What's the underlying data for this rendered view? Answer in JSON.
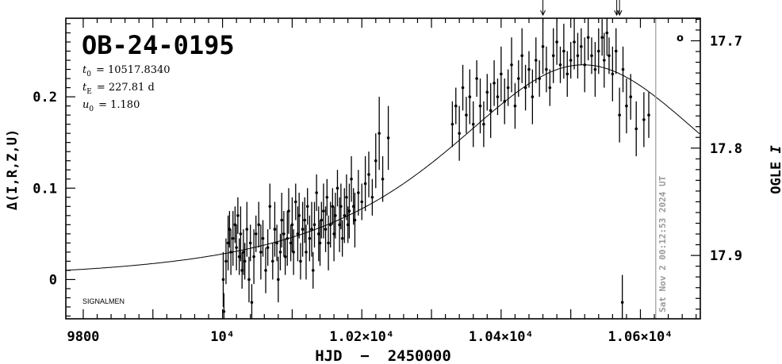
{
  "chart_data": {
    "type": "scatter",
    "title": "OB-24-0195",
    "params": [
      {
        "symbol": "t",
        "sub": "0",
        "value": "= 10517.8340"
      },
      {
        "symbol": "t",
        "sub": "E",
        "value": "= 227.81 d"
      },
      {
        "symbol": "u",
        "sub": "0",
        "value": "= 1.180"
      }
    ],
    "xlabel": "HJD  −  2450000",
    "ylabel": "Δ(I,R,Z,U)",
    "y2label": "OGLE I",
    "xlim": [
      9775,
      10686
    ],
    "ylim": [
      -0.043,
      0.286
    ],
    "y2lim": [
      17.959,
      17.679
    ],
    "x_ticks": [
      {
        "value": 9800,
        "label": "9800"
      },
      {
        "value": 10000,
        "label": "10⁴"
      },
      {
        "value": 10200,
        "label": "1.02×10⁴"
      },
      {
        "value": 10400,
        "label": "1.04×10⁴"
      },
      {
        "value": 10600,
        "label": "1.06×10⁴"
      }
    ],
    "y_ticks": [
      {
        "value": 0,
        "label": "0"
      },
      {
        "value": 0.1,
        "label": "0.1"
      },
      {
        "value": 0.2,
        "label": "0.2"
      }
    ],
    "y2_ticks": [
      {
        "value": 17.7,
        "label": "17.7"
      },
      {
        "value": 17.8,
        "label": "17.8"
      },
      {
        "value": 17.9,
        "label": "17.9"
      }
    ],
    "date_marker": {
      "x": 10622,
      "label": "Sat Nov  2 00:12:53 2024 UT",
      "color": "#9a9a9a"
    },
    "arrows_x": [
      10460,
      10566,
      10570
    ],
    "footnote": "SIGNALMEN",
    "corner_mark": "o",
    "model": {
      "t0": 10517.834,
      "tE": 227.81,
      "u0": 1.18
    },
    "series": [
      {
        "marker": "point-with-errorbar",
        "points": [
          [
            10001,
            0.0,
            0.03
          ],
          [
            10002,
            -0.035,
            0.02
          ],
          [
            10005,
            0.02,
            0.025
          ],
          [
            10008,
            0.04,
            0.03
          ],
          [
            10010,
            0.055,
            0.02
          ],
          [
            10012,
            0.03,
            0.025
          ],
          [
            10015,
            0.045,
            0.03
          ],
          [
            10018,
            0.06,
            0.02
          ],
          [
            10020,
            0.035,
            0.025
          ],
          [
            10022,
            0.07,
            0.02
          ],
          [
            10024,
            0.025,
            0.02
          ],
          [
            10026,
            0.05,
            0.03
          ],
          [
            10028,
            0.01,
            0.02
          ],
          [
            10030,
            0.03,
            0.025
          ],
          [
            10032,
            0.02,
            0.02
          ],
          [
            10035,
            0.055,
            0.03
          ],
          [
            10038,
            0.0,
            0.025
          ],
          [
            10040,
            0.04,
            0.02
          ],
          [
            10042,
            -0.025,
            0.02
          ],
          [
            10045,
            0.025,
            0.03
          ],
          [
            10048,
            0.05,
            0.02
          ],
          [
            10052,
            0.06,
            0.025
          ],
          [
            10055,
            0.03,
            0.03
          ],
          [
            10058,
            0.045,
            0.02
          ],
          [
            10062,
            0.01,
            0.025
          ],
          [
            10065,
            0.035,
            0.02
          ],
          [
            10068,
            0.08,
            0.025
          ],
          [
            10072,
            0.02,
            0.02
          ],
          [
            10075,
            0.055,
            0.03
          ],
          [
            10078,
            0.04,
            0.02
          ],
          [
            10080,
            0.0,
            0.025
          ],
          [
            10083,
            0.03,
            0.02
          ],
          [
            10085,
            0.065,
            0.03
          ],
          [
            10088,
            0.05,
            0.025
          ],
          [
            10090,
            0.025,
            0.02
          ],
          [
            10093,
            0.045,
            0.03
          ],
          [
            10095,
            0.075,
            0.025
          ],
          [
            10098,
            0.04,
            0.02
          ],
          [
            10100,
            0.06,
            0.03
          ],
          [
            10102,
            0.03,
            0.025
          ],
          [
            10105,
            0.085,
            0.02
          ],
          [
            10108,
            0.05,
            0.03
          ],
          [
            10110,
            0.07,
            0.025
          ],
          [
            10112,
            0.02,
            0.02
          ],
          [
            10115,
            0.055,
            0.03
          ],
          [
            10118,
            0.065,
            0.025
          ],
          [
            10120,
            0.03,
            0.03
          ],
          [
            10122,
            0.08,
            0.02
          ],
          [
            10125,
            0.045,
            0.025
          ],
          [
            10128,
            0.055,
            0.03
          ],
          [
            10130,
            0.01,
            0.02
          ],
          [
            10132,
            0.06,
            0.025
          ],
          [
            10135,
            0.095,
            0.02
          ],
          [
            10138,
            0.05,
            0.03
          ],
          [
            10140,
            0.04,
            0.025
          ],
          [
            10142,
            0.065,
            0.02
          ],
          [
            10145,
            0.075,
            0.03
          ],
          [
            10148,
            0.055,
            0.025
          ],
          [
            10150,
            0.09,
            0.02
          ],
          [
            10152,
            0.04,
            0.03
          ],
          [
            10155,
            0.06,
            0.025
          ],
          [
            10158,
            0.08,
            0.02
          ],
          [
            10160,
            0.05,
            0.03
          ],
          [
            10162,
            0.07,
            0.025
          ],
          [
            10165,
            0.1,
            0.02
          ],
          [
            10168,
            0.06,
            0.03
          ],
          [
            10170,
            0.08,
            0.025
          ],
          [
            10172,
            0.045,
            0.02
          ],
          [
            10175,
            0.07,
            0.03
          ],
          [
            10178,
            0.09,
            0.025
          ],
          [
            10180,
            0.06,
            0.02
          ],
          [
            10182,
            0.075,
            0.03
          ],
          [
            10185,
            0.11,
            0.025
          ],
          [
            10188,
            0.08,
            0.02
          ],
          [
            10190,
            0.065,
            0.03
          ],
          [
            10195,
            0.095,
            0.025
          ],
          [
            10200,
            0.085,
            0.02
          ],
          [
            10205,
            0.105,
            0.03
          ],
          [
            10210,
            0.115,
            0.025
          ],
          [
            10215,
            0.09,
            0.02
          ],
          [
            10220,
            0.13,
            0.03
          ],
          [
            10225,
            0.16,
            0.04
          ],
          [
            10230,
            0.11,
            0.025
          ],
          [
            10238,
            0.155,
            0.035
          ],
          [
            10330,
            0.17,
            0.025
          ],
          [
            10335,
            0.19,
            0.02
          ],
          [
            10340,
            0.16,
            0.03
          ],
          [
            10345,
            0.21,
            0.025
          ],
          [
            10350,
            0.18,
            0.02
          ],
          [
            10355,
            0.2,
            0.03
          ],
          [
            10360,
            0.17,
            0.025
          ],
          [
            10365,
            0.22,
            0.02
          ],
          [
            10370,
            0.19,
            0.03
          ],
          [
            10375,
            0.17,
            0.025
          ],
          [
            10380,
            0.205,
            0.02
          ],
          [
            10385,
            0.185,
            0.03
          ],
          [
            10390,
            0.215,
            0.025
          ],
          [
            10395,
            0.2,
            0.02
          ],
          [
            10400,
            0.225,
            0.03
          ],
          [
            10405,
            0.195,
            0.025
          ],
          [
            10410,
            0.21,
            0.02
          ],
          [
            10415,
            0.235,
            0.03
          ],
          [
            10420,
            0.19,
            0.025
          ],
          [
            10425,
            0.22,
            0.02
          ],
          [
            10430,
            0.245,
            0.03
          ],
          [
            10435,
            0.21,
            0.025
          ],
          [
            10440,
            0.23,
            0.02
          ],
          [
            10445,
            0.2,
            0.03
          ],
          [
            10450,
            0.24,
            0.025
          ],
          [
            10455,
            0.22,
            0.02
          ],
          [
            10460,
            0.255,
            0.03
          ],
          [
            10465,
            0.23,
            0.025
          ],
          [
            10470,
            0.21,
            0.02
          ],
          [
            10475,
            0.245,
            0.03
          ],
          [
            10480,
            0.26,
            0.025
          ],
          [
            10485,
            0.235,
            0.02
          ],
          [
            10490,
            0.25,
            0.03
          ],
          [
            10495,
            0.225,
            0.025
          ],
          [
            10500,
            0.24,
            0.02
          ],
          [
            10505,
            0.26,
            0.03
          ],
          [
            10510,
            0.245,
            0.025
          ],
          [
            10515,
            0.255,
            0.02
          ],
          [
            10520,
            0.235,
            0.03
          ],
          [
            10525,
            0.265,
            0.025
          ],
          [
            10530,
            0.245,
            0.02
          ],
          [
            10535,
            0.23,
            0.03
          ],
          [
            10540,
            0.25,
            0.025
          ],
          [
            10545,
            0.265,
            0.02
          ],
          [
            10548,
            0.24,
            0.03
          ],
          [
            10552,
            0.27,
            0.025
          ],
          [
            10555,
            0.245,
            0.02
          ],
          [
            10560,
            0.225,
            0.03
          ],
          [
            10565,
            0.25,
            0.025
          ],
          [
            10570,
            0.18,
            0.03
          ],
          [
            10575,
            0.23,
            0.025
          ],
          [
            10580,
            0.19,
            0.03
          ],
          [
            10586,
            0.2,
            0.025
          ],
          [
            10594,
            0.165,
            0.03
          ],
          [
            10605,
            0.175,
            0.03
          ],
          [
            10612,
            0.18,
            0.025
          ],
          [
            10574,
            -0.025,
            0.03
          ]
        ]
      }
    ]
  }
}
